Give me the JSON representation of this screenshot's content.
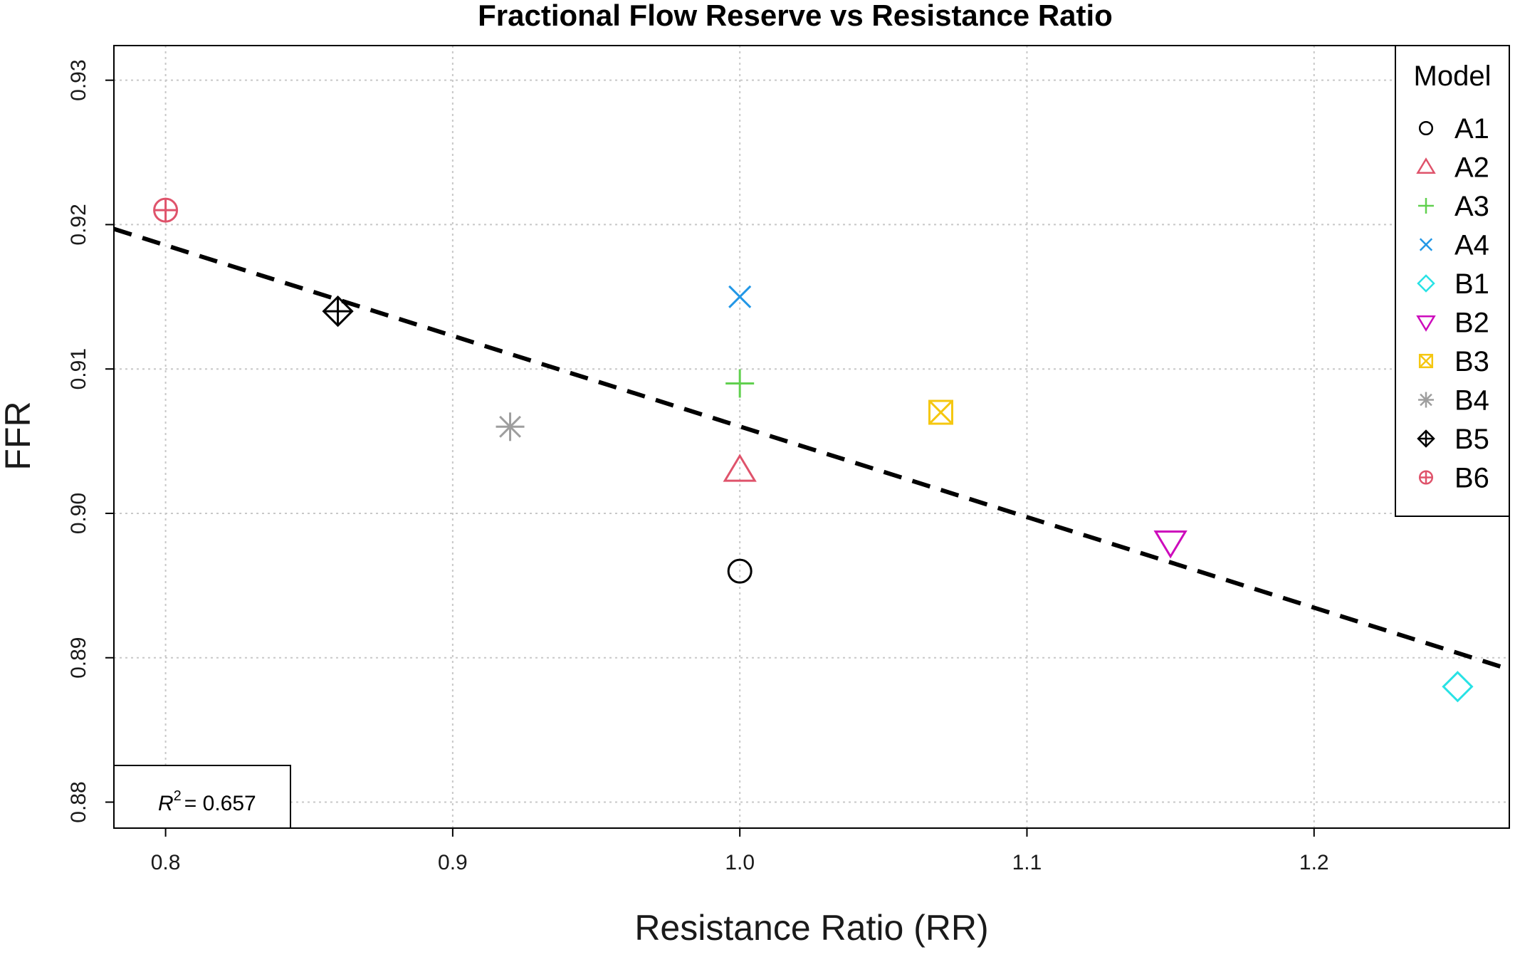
{
  "chart_data": {
    "type": "scatter",
    "title": "Fractional Flow Reserve vs Resistance Ratio",
    "xlabel": "Resistance Ratio (RR)",
    "ylabel": "FFR",
    "xlim": [
      0.782,
      1.268
    ],
    "ylim": [
      0.8782,
      0.9324
    ],
    "xticks": [
      0.8,
      0.9,
      1.0,
      1.1,
      1.2
    ],
    "xtick_labels": [
      "0.8",
      "0.9",
      "1.0",
      "1.1",
      "1.2"
    ],
    "yticks": [
      0.88,
      0.89,
      0.9,
      0.91,
      0.92,
      0.93
    ],
    "ytick_labels": [
      "0.88",
      "0.89",
      "0.90",
      "0.91",
      "0.92",
      "0.93"
    ],
    "grid": true,
    "legend_title": "Model",
    "legend_position": "top-right",
    "series": [
      {
        "name": "A1",
        "x": 1.0,
        "y": 0.896,
        "marker": "circle",
        "color": "#000000"
      },
      {
        "name": "A2",
        "x": 1.0,
        "y": 0.903,
        "marker": "triangle-up",
        "color": "#DF536B"
      },
      {
        "name": "A3",
        "x": 1.0,
        "y": 0.909,
        "marker": "plus",
        "color": "#61D04F"
      },
      {
        "name": "A4",
        "x": 1.0,
        "y": 0.915,
        "marker": "cross",
        "color": "#2297E6"
      },
      {
        "name": "B1",
        "x": 1.25,
        "y": 0.888,
        "marker": "diamond",
        "color": "#28E2E5"
      },
      {
        "name": "B2",
        "x": 1.15,
        "y": 0.898,
        "marker": "triangle-down",
        "color": "#CD0BBC"
      },
      {
        "name": "B3",
        "x": 1.07,
        "y": 0.907,
        "marker": "square-cross",
        "color": "#F5C710"
      },
      {
        "name": "B4",
        "x": 0.92,
        "y": 0.906,
        "marker": "asterisk",
        "color": "#9E9E9E"
      },
      {
        "name": "B5",
        "x": 0.86,
        "y": 0.914,
        "marker": "diamond-plus",
        "color": "#000000"
      },
      {
        "name": "B6",
        "x": 0.8,
        "y": 0.921,
        "marker": "circle-plus",
        "color": "#DF536B"
      }
    ],
    "trendline": {
      "x": [
        0.782,
        1.268
      ],
      "y": [
        0.9197,
        0.8892
      ],
      "style": "dashed",
      "color": "#000000"
    },
    "annotation": {
      "label": "R",
      "superscript": "2",
      "text": "= 0.657",
      "position": "bottom-left"
    }
  }
}
